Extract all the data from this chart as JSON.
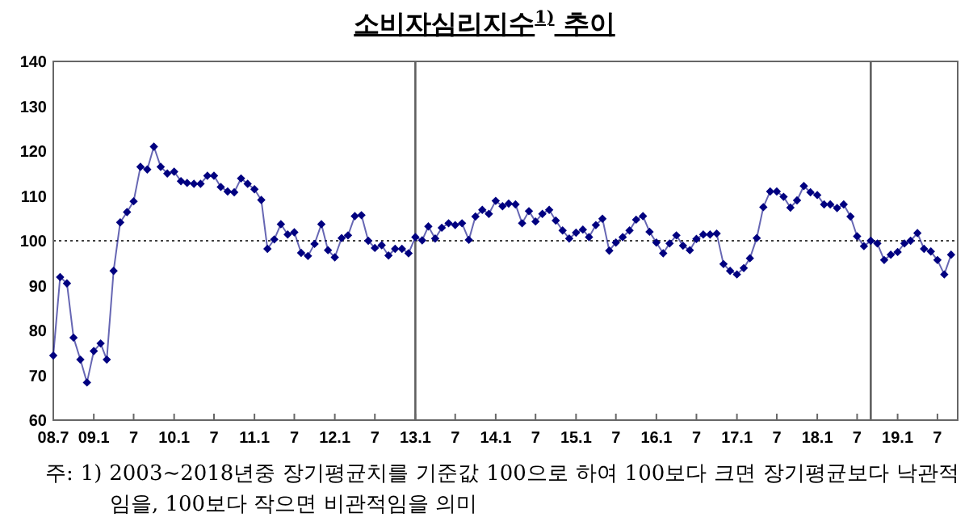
{
  "chart_data": {
    "type": "line",
    "title": "소비자심리지수$^{1)}$ 추이",
    "x": [
      "2008-07",
      "2008-08",
      "2008-09",
      "2008-10",
      "2008-11",
      "2008-12",
      "2009-01",
      "2009-02",
      "2009-03",
      "2009-04",
      "2009-05",
      "2009-06",
      "2009-07",
      "2009-08",
      "2009-09",
      "2009-10",
      "2009-11",
      "2009-12",
      "2010-01",
      "2010-02",
      "2010-03",
      "2010-04",
      "2010-05",
      "2010-06",
      "2010-07",
      "2010-08",
      "2010-09",
      "2010-10",
      "2010-11",
      "2010-12",
      "2011-01",
      "2011-02",
      "2011-03",
      "2011-04",
      "2011-05",
      "2011-06",
      "2011-07",
      "2011-08",
      "2011-09",
      "2011-10",
      "2011-11",
      "2011-12",
      "2012-01",
      "2012-02",
      "2012-03",
      "2012-04",
      "2012-05",
      "2012-06",
      "2012-07",
      "2012-08",
      "2012-09",
      "2012-10",
      "2012-11",
      "2012-12",
      "2013-01",
      "2013-02",
      "2013-03",
      "2013-04",
      "2013-05",
      "2013-06",
      "2013-07",
      "2013-08",
      "2013-09",
      "2013-10",
      "2013-11",
      "2013-12",
      "2014-01",
      "2014-02",
      "2014-03",
      "2014-04",
      "2014-05",
      "2014-06",
      "2014-07",
      "2014-08",
      "2014-09",
      "2014-10",
      "2014-11",
      "2014-12",
      "2015-01",
      "2015-02",
      "2015-03",
      "2015-04",
      "2015-05",
      "2015-06",
      "2015-07",
      "2015-08",
      "2015-09",
      "2015-10",
      "2015-11",
      "2015-12",
      "2016-01",
      "2016-02",
      "2016-03",
      "2016-04",
      "2016-05",
      "2016-06",
      "2016-07",
      "2016-08",
      "2016-09",
      "2016-10",
      "2016-11",
      "2016-12",
      "2017-01",
      "2017-02",
      "2017-03",
      "2017-04",
      "2017-05",
      "2017-06",
      "2017-07",
      "2017-08",
      "2017-09",
      "2017-10",
      "2017-11",
      "2017-12",
      "2018-01",
      "2018-02",
      "2018-03",
      "2018-04",
      "2018-05",
      "2018-06",
      "2018-07",
      "2018-08",
      "2018-09",
      "2018-10",
      "2018-11",
      "2018-12",
      "2019-01",
      "2019-02",
      "2019-03",
      "2019-04",
      "2019-05",
      "2019-06",
      "2019-07",
      "2019-08",
      "2019-09"
    ],
    "series": [
      {
        "color": "#000080",
        "values": [
          74.4,
          91.9,
          90.5,
          78.4,
          73.5,
          68.4,
          75.4,
          77.1,
          73.5,
          93.3,
          104.1,
          106.4,
          108.8,
          116.5,
          115.9,
          121,
          116.5,
          115,
          115.4,
          113.3,
          112.9,
          112.7,
          112.7,
          114.5,
          114.5,
          112,
          111,
          110.8,
          113.9,
          112.7,
          111.5,
          109.1,
          98.2,
          100.3,
          103.7,
          101.4,
          101.9,
          97.3,
          96.6,
          99.3,
          103.7,
          97.9,
          96.3,
          100.6,
          101.2,
          105.5,
          105.7,
          100,
          98.4,
          99,
          96.7,
          98.2,
          98.2,
          97.2,
          100.8,
          100.1,
          103.2,
          100.5,
          102.9,
          103.9,
          103.5,
          103.9,
          100.2,
          105.4,
          106.9,
          106,
          108.9,
          107.7,
          108.3,
          108.1,
          103.9,
          106.6,
          104.3,
          106,
          106.9,
          104.5,
          102.3,
          100.5,
          101.8,
          102.5,
          100.8,
          103.5,
          104.9,
          97.8,
          99.6,
          100.8,
          102.3,
          104.7,
          105.5,
          102,
          99.6,
          97.2,
          99.4,
          101.2,
          98.9,
          97.9,
          100.4,
          101.4,
          101.4,
          101.6,
          94.8,
          93.3,
          92.5,
          93.9,
          96.1,
          100.6,
          107.5,
          111,
          111,
          109.8,
          107.4,
          109,
          112.2,
          110.8,
          110.2,
          108.1,
          108.1,
          107.3,
          108.1,
          105.4,
          101,
          98.8,
          100,
          99.4,
          95.7,
          96.9,
          97.5,
          99.4,
          100,
          101.7,
          98.2,
          97.6,
          95.7,
          92.5,
          96.9
        ]
      }
    ],
    "xlim": [
      "2008-07",
      "2019-10"
    ],
    "xticks": [
      {
        "value": "2008-07",
        "label": "08.7"
      },
      {
        "value": "2009-01",
        "label": "09.1"
      },
      {
        "value": "2009-07",
        "label": "7"
      },
      {
        "value": "2010-01",
        "label": "10.1"
      },
      {
        "value": "2010-07",
        "label": "7"
      },
      {
        "value": "2011-01",
        "label": "11.1"
      },
      {
        "value": "2011-07",
        "label": "7"
      },
      {
        "value": "2012-01",
        "label": "12.1"
      },
      {
        "value": "2012-07",
        "label": "7"
      },
      {
        "value": "2013-01",
        "label": "13.1"
      },
      {
        "value": "2013-07",
        "label": "7"
      },
      {
        "value": "2014-01",
        "label": "14.1"
      },
      {
        "value": "2014-07",
        "label": "7"
      },
      {
        "value": "2015-01",
        "label": "15.1"
      },
      {
        "value": "2015-07",
        "label": "7"
      },
      {
        "value": "2016-01",
        "label": "16.1"
      },
      {
        "value": "2016-07",
        "label": "7"
      },
      {
        "value": "2017-01",
        "label": "17.1"
      },
      {
        "value": "2017-07",
        "label": "7"
      },
      {
        "value": "2018-01",
        "label": "18.1"
      },
      {
        "value": "2018-07",
        "label": "7"
      },
      {
        "value": "2019-01",
        "label": "19.1"
      },
      {
        "value": "2019-07",
        "label": "7"
      }
    ],
    "ylim": [
      60,
      140
    ],
    "yticks": [
      60,
      70,
      80,
      90,
      100,
      110,
      120,
      130,
      140
    ],
    "ref_lines": [
      {
        "axis": "y",
        "value": 100,
        "line_style": "dotted",
        "color": "#404040"
      },
      {
        "axis": "x",
        "value": "2013-01",
        "color": "#606060"
      },
      {
        "axis": "x",
        "value": "2018-09",
        "color": "#606060"
      }
    ],
    "marker": "diamond",
    "line_style": "solid",
    "grid": false,
    "annotations": [
      "주: 1) 2003~2018년중 장기평균치를 기준값 100으로 하여 100보다 크면 장기평균보다 낙관적임을, 100보다 작으면 비관적임을 의미"
    ]
  }
}
